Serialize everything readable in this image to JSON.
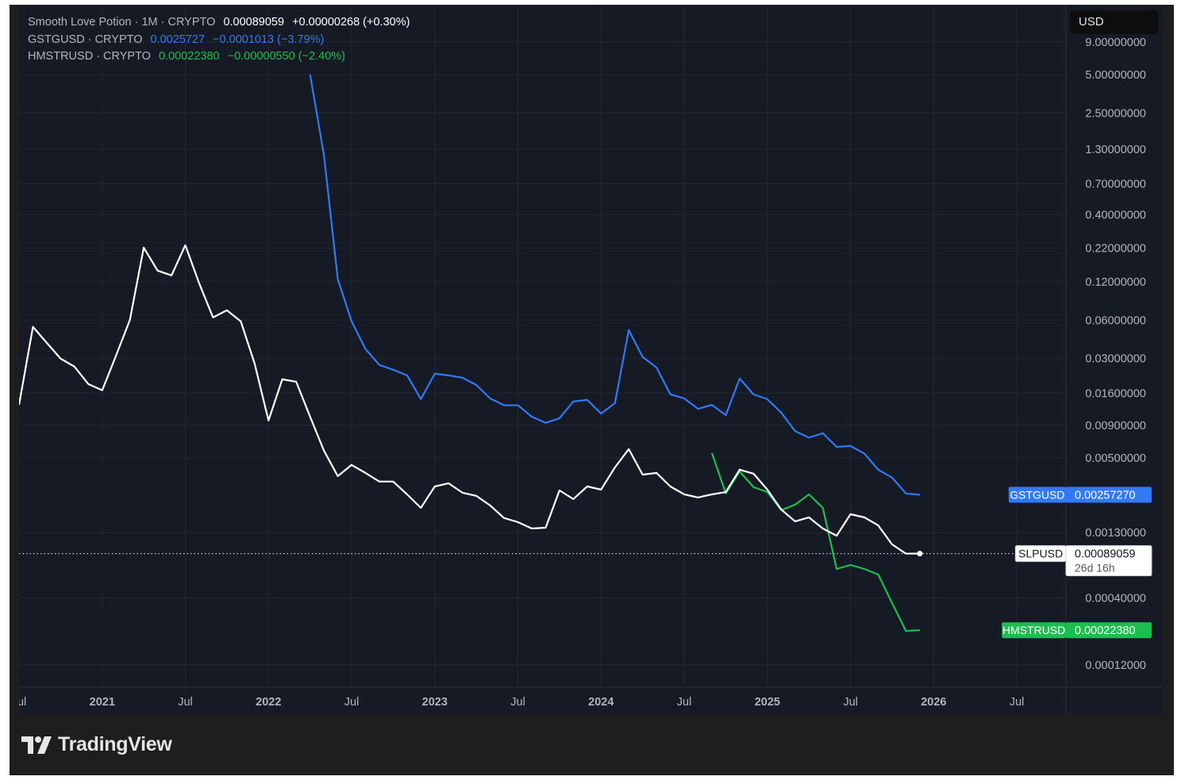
{
  "legend": {
    "main": {
      "name": "Smooth Love Potion · 1M · CRYPTO",
      "value": "0.00089059",
      "change": "+0.00000268 (+0.30%)"
    },
    "gst": {
      "name": "GSTGUSD · CRYPTO",
      "value": "0.0025727",
      "change": "−0.0001013 (−3.79%)"
    },
    "hmstr": {
      "name": "HMSTRUSD · CRYPTO",
      "value": "0.00022380",
      "change": "−0.00000550 (−2.40%)"
    }
  },
  "currency": "USD",
  "brand": "TradingView",
  "colors": {
    "slp": "#ffffff",
    "gst": "#3179f5",
    "hmstr": "#1bbf4f",
    "background": "#161a25",
    "grid": "#232733",
    "axis_text": "#b2b5be"
  },
  "chart_data": {
    "type": "line",
    "scale": "log",
    "interval": "1M",
    "start_month": "2020-07",
    "ylim": [
      0.0001,
      9.5
    ],
    "grid": true,
    "y_ticks": [
      "9.00000000",
      "5.00000000",
      "2.50000000",
      "1.30000000",
      "0.70000000",
      "0.40000000",
      "0.22000000",
      "0.12000000",
      "0.06000000",
      "0.03000000",
      "0.01600000",
      "0.00900000",
      "0.00500000",
      "0.00130000",
      "0.00040000",
      "0.00012000"
    ],
    "x_ticks": [
      {
        "label": "Jul",
        "month_index": 0
      },
      {
        "label": "2021",
        "month_index": 6
      },
      {
        "label": "Jul",
        "month_index": 12
      },
      {
        "label": "2022",
        "month_index": 18
      },
      {
        "label": "Jul",
        "month_index": 24
      },
      {
        "label": "2023",
        "month_index": 30
      },
      {
        "label": "Jul",
        "month_index": 36
      },
      {
        "label": "2024",
        "month_index": 42
      },
      {
        "label": "Jul",
        "month_index": 48
      },
      {
        "label": "2025",
        "month_index": 54
      },
      {
        "label": "Jul",
        "month_index": 60
      },
      {
        "label": "2026",
        "month_index": 66
      },
      {
        "label": "Jul",
        "month_index": 72
      }
    ],
    "series": [
      {
        "name": "SLPUSD",
        "key": "slp",
        "start_index": 0,
        "tag_value": "0.00089059",
        "tag_sub": "26d 16h",
        "values": [
          0.013,
          0.053,
          0.0398,
          0.0299,
          0.0259,
          0.0189,
          0.0169,
          0.0316,
          0.0602,
          0.221,
          0.146,
          0.134,
          0.231,
          0.116,
          0.0629,
          0.0715,
          0.0585,
          0.0274,
          0.0098,
          0.0206,
          0.0197,
          0.0105,
          0.0057,
          0.0036,
          0.0044,
          0.00381,
          0.00326,
          0.00326,
          0.00259,
          0.00203,
          0.00299,
          0.00316,
          0.00267,
          0.00252,
          0.00212,
          0.00169,
          0.00157,
          0.0014,
          0.00142,
          0.00278,
          0.00238,
          0.00299,
          0.00282,
          0.00421,
          0.00585,
          0.0037,
          0.00381,
          0.00299,
          0.00259,
          0.00245,
          0.00259,
          0.0027,
          0.00404,
          0.00376,
          0.00282,
          0.00197,
          0.00159,
          0.00171,
          0.0014,
          0.00123,
          0.00181,
          0.00171,
          0.00148,
          0.00105,
          0.00089,
          0.00089059
        ]
      },
      {
        "name": "GSTGUSD",
        "key": "gst",
        "start_index": 21,
        "tag_value": "0.00257270",
        "values": [
          5.0,
          1.18,
          0.125,
          0.0585,
          0.0355,
          0.0267,
          0.0245,
          0.0221,
          0.0144,
          0.0228,
          0.0221,
          0.0212,
          0.0186,
          0.0146,
          0.0129,
          0.0129,
          0.0105,
          0.0094,
          0.0102,
          0.0138,
          0.0142,
          0.0111,
          0.0134,
          0.05,
          0.0308,
          0.0255,
          0.0157,
          0.0146,
          0.0121,
          0.013,
          0.0108,
          0.0209,
          0.0157,
          0.0144,
          0.0113,
          0.0081,
          0.0072,
          0.0078,
          0.0061,
          0.0062,
          0.0054,
          0.00404,
          0.0035,
          0.00263,
          0.0025727
        ]
      },
      {
        "name": "HMSTRUSD",
        "key": "hmstr",
        "start_index": 50,
        "tag_value": "0.00022380",
        "values": [
          0.00545,
          0.00263,
          0.00392,
          0.00295,
          0.0027,
          0.00195,
          0.00215,
          0.00259,
          0.00203,
          0.000675,
          0.000725,
          0.000675,
          0.000611,
          0.000365,
          0.000221,
          0.0002238
        ]
      }
    ]
  }
}
